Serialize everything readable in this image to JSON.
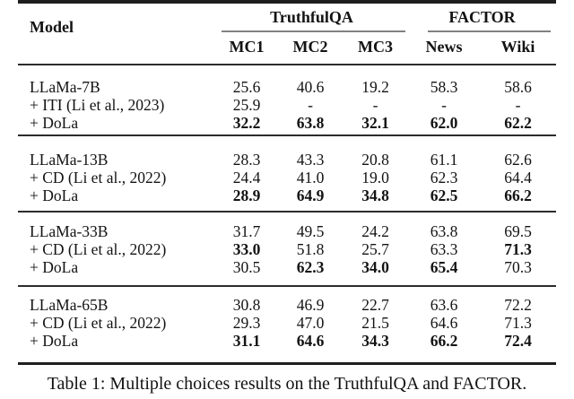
{
  "table": {
    "header": {
      "model": "Model",
      "group1": "TruthfulQA",
      "group2": "FACTOR",
      "cols": [
        "MC1",
        "MC2",
        "MC3",
        "News",
        "Wiki"
      ]
    },
    "groups": [
      {
        "rows": [
          {
            "model": "LLaMa-7B",
            "cells": [
              "25.6",
              "40.6",
              "19.2",
              "58.3",
              "58.6"
            ]
          },
          {
            "model": "+ ITI (Li et al., 2023)",
            "cells": [
              "25.9",
              "-",
              "-",
              "-",
              "-"
            ]
          },
          {
            "model": "+ DoLa",
            "cells": [
              "32.2",
              "63.8",
              "32.1",
              "62.0",
              "62.2"
            ]
          }
        ]
      },
      {
        "rows": [
          {
            "model": "LLaMa-13B",
            "cells": [
              "28.3",
              "43.3",
              "20.8",
              "61.1",
              "62.6"
            ]
          },
          {
            "model": "+ CD (Li et al., 2022)",
            "cells": [
              "24.4",
              "41.0",
              "19.0",
              "62.3",
              "64.4"
            ]
          },
          {
            "model": "+ DoLa",
            "cells": [
              "28.9",
              "64.9",
              "34.8",
              "62.5",
              "66.2"
            ]
          }
        ]
      },
      {
        "rows": [
          {
            "model": "LLaMa-33B",
            "cells": [
              "31.7",
              "49.5",
              "24.2",
              "63.8",
              "69.5"
            ]
          },
          {
            "model": "+ CD (Li et al., 2022)",
            "cells": [
              "33.0",
              "51.8",
              "25.7",
              "63.3",
              "71.3"
            ]
          },
          {
            "model": "+ DoLa",
            "cells": [
              "30.5",
              "62.3",
              "34.0",
              "65.4",
              "70.3"
            ]
          }
        ]
      },
      {
        "rows": [
          {
            "model": "LLaMa-65B",
            "cells": [
              "30.8",
              "46.9",
              "22.7",
              "63.6",
              "72.2"
            ]
          },
          {
            "model": "+ CD (Li et al., 2022)",
            "cells": [
              "29.3",
              "47.0",
              "21.5",
              "64.6",
              "71.3"
            ]
          },
          {
            "model": "+ DoLa",
            "cells": [
              "31.1",
              "64.6",
              "34.3",
              "66.2",
              "72.4"
            ]
          }
        ]
      }
    ],
    "caption": "Table 1: Multiple choices results on the TruthfulQA and FACTOR."
  }
}
